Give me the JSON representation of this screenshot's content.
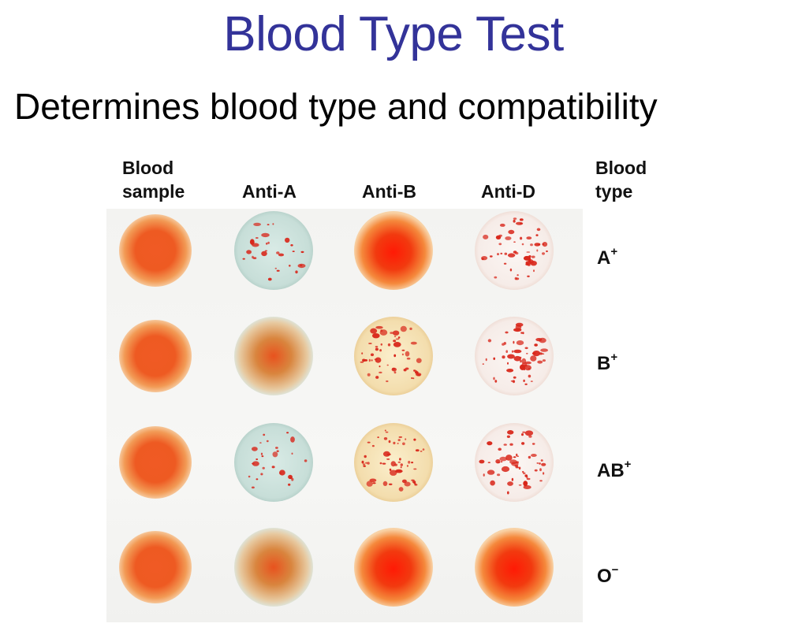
{
  "title": "Blood Type Test",
  "subtitle": "Determines blood type and compatibility",
  "headers": {
    "sample_line1": "Blood",
    "sample_line2": "sample",
    "anti_a": "Anti-A",
    "anti_b": "Anti-B",
    "anti_d": "Anti-D",
    "type_line1": "Blood",
    "type_line2": "type"
  },
  "rows": [
    {
      "type": "A",
      "rh": "+",
      "anti_a": "agglutinated",
      "anti_b": "none",
      "anti_d": "agglutinated"
    },
    {
      "type": "B",
      "rh": "+",
      "anti_a": "none",
      "anti_b": "agglutinated",
      "anti_d": "agglutinated"
    },
    {
      "type": "AB",
      "rh": "+",
      "anti_a": "agglutinated",
      "anti_b": "agglutinated",
      "anti_d": "agglutinated"
    },
    {
      "type": "O",
      "rh": "−",
      "anti_a": "none",
      "anti_b": "none",
      "anti_d": "none"
    }
  ],
  "colors": {
    "title": "#333399",
    "blood": "#e8421a",
    "anti_a_reagent": "#cfe3de",
    "anti_b_reagent": "#f6e6b8",
    "anti_d_reagent": "#f8f1ee",
    "clump": "#d8261a"
  }
}
